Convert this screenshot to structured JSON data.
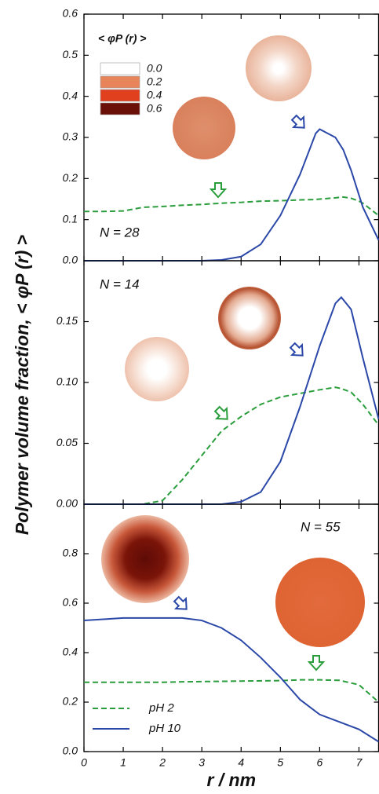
{
  "chart_data": [
    {
      "type": "line",
      "annotation": "N = 28",
      "x": [
        0,
        0.5,
        1,
        1.5,
        2,
        2.5,
        3,
        3.5,
        4,
        4.5,
        5,
        5.5,
        5.9,
        6,
        6.4,
        6.6,
        6.8,
        7,
        7.1,
        7.5
      ],
      "series": [
        {
          "name": "pH 2",
          "color": "#2a9d3c",
          "dash": true,
          "values": [
            0.12,
            0.12,
            0.121,
            0.13,
            0.132,
            0.135,
            0.137,
            0.14,
            0.142,
            0.145,
            0.146,
            0.148,
            0.149,
            0.15,
            0.153,
            0.155,
            0.152,
            0.145,
            0.14,
            0.11
          ]
        },
        {
          "name": "pH 10",
          "color": "#2b48a8",
          "dash": false,
          "values": [
            0,
            0,
            0,
            0,
            0,
            0,
            0,
            0.002,
            0.01,
            0.04,
            0.11,
            0.21,
            0.31,
            0.32,
            0.3,
            0.27,
            0.22,
            0.16,
            0.13,
            0.05
          ]
        }
      ],
      "xlim": [
        0,
        7.5
      ],
      "xticks": [
        0,
        1,
        2,
        3,
        4,
        5,
        6,
        7
      ],
      "ylim": [
        0,
        0.6
      ],
      "yticks": [
        {
          "value": 0,
          "label": "0.0"
        },
        {
          "value": 0.1,
          "label": "0.1"
        },
        {
          "value": 0.2,
          "label": "0.2"
        },
        {
          "value": 0.3,
          "label": "0.3"
        },
        {
          "value": 0.4,
          "label": "0.4"
        },
        {
          "value": 0.5,
          "label": "0.5"
        },
        {
          "value": 0.6,
          "label": "0.6"
        }
      ],
      "colorbar": {
        "title": "< φP (r) >",
        "entries": [
          {
            "label": "0.0",
            "color": "#ffffff"
          },
          {
            "label": "0.2",
            "color": "#e8845a"
          },
          {
            "label": "0.4",
            "color": "#e0401e"
          },
          {
            "label": "0.6",
            "color": "#6b1008"
          }
        ]
      }
    },
    {
      "type": "line",
      "annotation": "N = 14",
      "ylabel": "Polymer volume fraction, < φP (r) >",
      "x": [
        0,
        0.5,
        1,
        1.5,
        2,
        2.5,
        3,
        3.5,
        4,
        4.5,
        5,
        5.5,
        6,
        6.4,
        6.55,
        6.8,
        7.1,
        7.5
      ],
      "series": [
        {
          "name": "pH 2",
          "color": "#2a9d3c",
          "dash": true,
          "values": [
            0,
            0,
            0,
            0,
            0.003,
            0.02,
            0.04,
            0.06,
            0.072,
            0.082,
            0.088,
            0.091,
            0.094,
            0.096,
            0.095,
            0.092,
            0.082,
            0.065
          ]
        },
        {
          "name": "pH 10",
          "color": "#2b48a8",
          "dash": false,
          "values": [
            0,
            0,
            0,
            0,
            0,
            0,
            0,
            0,
            0.002,
            0.01,
            0.035,
            0.08,
            0.13,
            0.165,
            0.17,
            0.16,
            0.12,
            0.07
          ]
        }
      ],
      "xlim": [
        0,
        7.5
      ],
      "xticks": [
        0,
        1,
        2,
        3,
        4,
        5,
        6,
        7
      ],
      "ylim": [
        0,
        0.2
      ],
      "yticks": [
        {
          "value": 0,
          "label": "0.00"
        },
        {
          "value": 0.05,
          "label": "0.05"
        },
        {
          "value": 0.1,
          "label": "0.10"
        },
        {
          "value": 0.15,
          "label": "0.15"
        }
      ]
    },
    {
      "type": "line",
      "annotation": "N = 55",
      "xlabel": "r / nm",
      "x": [
        0,
        0.5,
        1,
        1.5,
        2,
        2.5,
        3,
        3.5,
        4,
        4.5,
        5,
        5.5,
        6,
        6.5,
        7,
        7.5
      ],
      "series": [
        {
          "name": "pH 2",
          "color": "#2a9d3c",
          "dash": true,
          "values": [
            0.28,
            0.28,
            0.28,
            0.28,
            0.28,
            0.282,
            0.283,
            0.284,
            0.285,
            0.286,
            0.287,
            0.29,
            0.29,
            0.288,
            0.27,
            0.2
          ]
        },
        {
          "name": "pH 10",
          "color": "#2b48a8",
          "dash": false,
          "values": [
            0.53,
            0.535,
            0.54,
            0.54,
            0.54,
            0.54,
            0.53,
            0.5,
            0.45,
            0.38,
            0.3,
            0.21,
            0.15,
            0.12,
            0.09,
            0.04
          ]
        }
      ],
      "xlim": [
        0,
        7.5
      ],
      "xticks": [
        0,
        1,
        2,
        3,
        4,
        5,
        6,
        7
      ],
      "ylim": [
        0,
        1
      ],
      "yticks": [
        {
          "value": 0,
          "label": "0.0"
        },
        {
          "value": 0.2,
          "label": "0.2"
        },
        {
          "value": 0.4,
          "label": "0.4"
        },
        {
          "value": 0.6,
          "label": "0.6"
        },
        {
          "value": 0.8,
          "label": "0.8"
        }
      ],
      "legend": "lower left"
    }
  ]
}
